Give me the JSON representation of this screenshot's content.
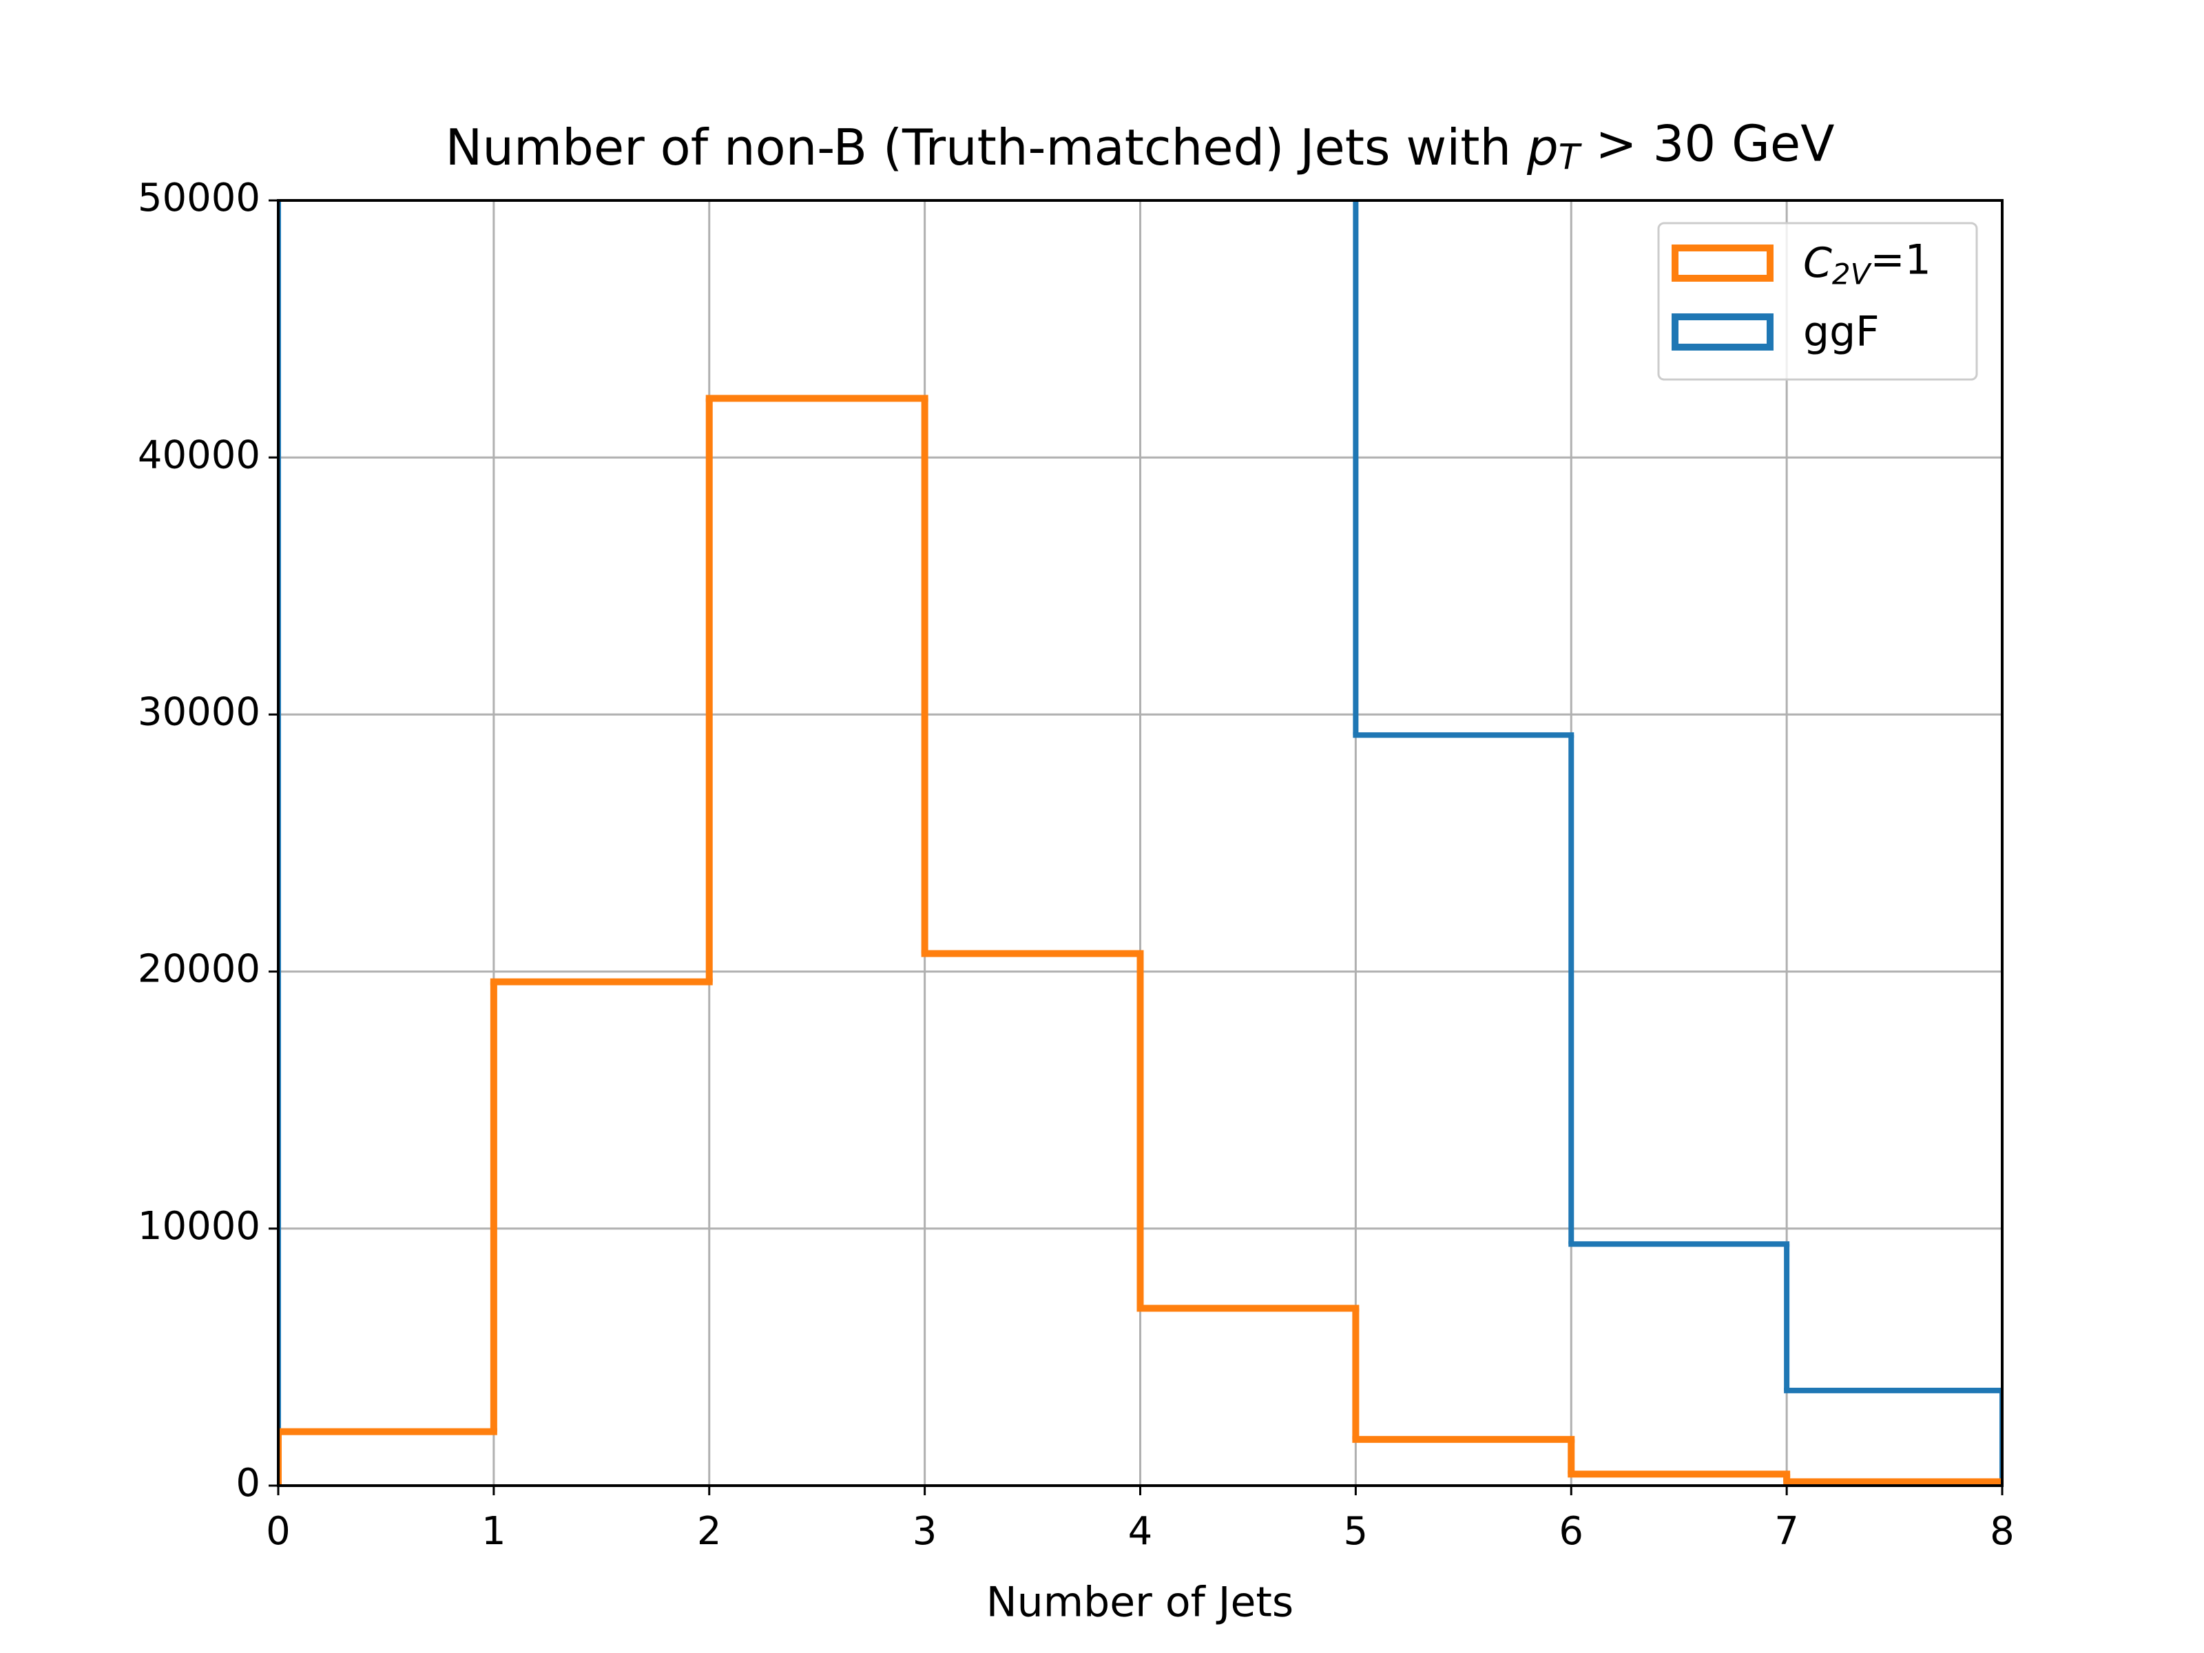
{
  "chart_data": {
    "type": "histogram",
    "title": "Number of non-B (Truth-matched) Jets with pT > 30 GeV",
    "x_label": "Number of Jets",
    "bins": [
      0,
      1,
      2,
      3,
      4,
      5,
      6,
      7,
      8
    ],
    "series": [
      {
        "name": "ggF",
        "color": "#1f77b4",
        "values": [
          null,
          null,
          null,
          null,
          null,
          29200,
          9400,
          3700
        ]
      },
      {
        "name": "C2V=1",
        "color": "#ff7f0e",
        "values": [
          2100,
          19600,
          42300,
          20700,
          6900,
          1800,
          450,
          150
        ]
      }
    ],
    "legend_order": [
      1,
      0
    ],
    "xlim": [
      0,
      8
    ],
    "xticks": [
      0,
      1,
      2,
      3,
      4,
      5,
      6,
      7,
      8
    ],
    "ylim": [
      0,
      50000
    ],
    "yticks": [
      0,
      10000,
      20000,
      30000,
      40000,
      50000
    ],
    "grid": true,
    "legend": "upper right"
  }
}
